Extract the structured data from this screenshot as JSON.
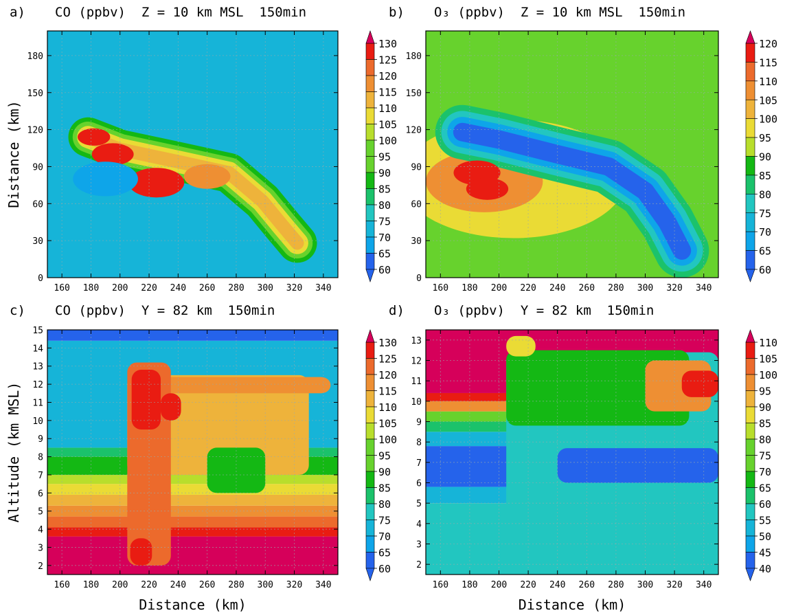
{
  "colors": {
    "levels": [
      "#2563eb",
      "#0ea5e9",
      "#16b4d8",
      "#22c6c0",
      "#1bc26b",
      "#14b814",
      "#67d22d",
      "#b8de2c",
      "#eadb35",
      "#eeb33b",
      "#ee8f33",
      "#ec6a2c",
      "#e91c12",
      "#d6005a"
    ],
    "arrow_low": "#2563eb",
    "arrow_high": "#d6005a"
  },
  "chart_data": [
    {
      "id": "a",
      "type": "heatmap",
      "panel_label": "a)",
      "title": "CO (ppbv)  Z = 10 km MSL  150min",
      "xlabel": "",
      "ylabel": "Distance (km)",
      "xlim": [
        150,
        350
      ],
      "ylim": [
        0,
        200
      ],
      "xticks": [
        "160",
        "180",
        "200",
        "220",
        "240",
        "260",
        "280",
        "300",
        "320",
        "340"
      ],
      "yticks": [
        "0",
        "30",
        "60",
        "90",
        "120",
        "150",
        "180"
      ],
      "colorbar": [
        "130",
        "125",
        "120",
        "115",
        "110",
        "105",
        "100",
        "95",
        "90",
        "85",
        "80",
        "75",
        "70",
        "65",
        "60"
      ],
      "background_level": 2,
      "features": [
        {
          "kind": "band",
          "points": [
            [
              178,
              114
            ],
            [
              200,
              104
            ],
            [
              240,
              94
            ],
            [
              275,
              85
            ],
            [
              298,
              62
            ],
            [
              312,
              42
            ],
            [
              322,
              28
            ]
          ],
          "halfwidth": 16,
          "levels": [
            5,
            6,
            8,
            9
          ]
        },
        {
          "kind": "blob",
          "x": 182,
          "y": 114,
          "r": 7,
          "level": 12
        },
        {
          "kind": "blob",
          "x": 195,
          "y": 100,
          "r": 9,
          "level": 12
        },
        {
          "kind": "blob",
          "x": 225,
          "y": 77,
          "r": 12,
          "level": 12
        },
        {
          "kind": "blob",
          "x": 260,
          "y": 82,
          "r": 10,
          "level": 10
        },
        {
          "kind": "blob",
          "x": 190,
          "y": 80,
          "r": 14,
          "level": 1,
          "under": true
        }
      ]
    },
    {
      "id": "b",
      "type": "heatmap",
      "panel_label": "b)",
      "title": "O₃ (ppbv)  Z = 10 km MSL  150min",
      "xlabel": "",
      "ylabel": "",
      "xlim": [
        150,
        350
      ],
      "ylim": [
        0,
        200
      ],
      "xticks": [
        "160",
        "180",
        "200",
        "220",
        "240",
        "260",
        "280",
        "300",
        "320",
        "340"
      ],
      "yticks": [
        "0",
        "30",
        "60",
        "90",
        "120",
        "150",
        "180"
      ],
      "colorbar": [
        "120",
        "115",
        "110",
        "105",
        "100",
        "95",
        "90",
        "85",
        "80",
        "75",
        "70",
        "65",
        "60"
      ],
      "background_level": 6,
      "features": [
        {
          "kind": "blob",
          "x": 210,
          "y": 80,
          "r": 48,
          "level": 8
        },
        {
          "kind": "blob",
          "x": 190,
          "y": 78,
          "r": 25,
          "level": 10
        },
        {
          "kind": "band",
          "points": [
            [
              175,
              118
            ],
            [
              200,
              112
            ],
            [
              240,
              100
            ],
            [
              275,
              90
            ],
            [
              300,
              70
            ],
            [
              315,
              45
            ],
            [
              325,
              22
            ]
          ],
          "halfwidth": 22,
          "levels": [
            4,
            3,
            1,
            0
          ]
        },
        {
          "kind": "blob",
          "x": 185,
          "y": 85,
          "r": 10,
          "level": 12
        },
        {
          "kind": "blob",
          "x": 192,
          "y": 72,
          "r": 9,
          "level": 12
        }
      ]
    },
    {
      "id": "c",
      "type": "heatmap",
      "panel_label": "c)",
      "title": "CO (ppbv)  Y = 82 km  150min",
      "xlabel": "Distance (km)",
      "ylabel": "Altitude (km MSL)",
      "xlim": [
        150,
        350
      ],
      "ylim": [
        1.5,
        15
      ],
      "xticks": [
        "160",
        "180",
        "200",
        "220",
        "240",
        "260",
        "280",
        "300",
        "320",
        "340"
      ],
      "yticks": [
        "2",
        "3",
        "4",
        "5",
        "6",
        "7",
        "8",
        "9",
        "10",
        "11",
        "12",
        "13",
        "14",
        "15"
      ],
      "colorbar": [
        "130",
        "125",
        "120",
        "115",
        "110",
        "105",
        "100",
        "95",
        "90",
        "85",
        "80",
        "75",
        "70",
        "65",
        "60"
      ],
      "layers": [
        {
          "y0": 1.5,
          "y1": 3.6,
          "level": 13
        },
        {
          "y0": 3.6,
          "y1": 4.1,
          "level": 12
        },
        {
          "y0": 4.1,
          "y1": 4.7,
          "level": 11
        },
        {
          "y0": 4.7,
          "y1": 5.3,
          "level": 10
        },
        {
          "y0": 5.3,
          "y1": 5.9,
          "level": 9
        },
        {
          "y0": 5.9,
          "y1": 6.5,
          "level": 8
        },
        {
          "y0": 6.5,
          "y1": 7.0,
          "level": 7
        },
        {
          "y0": 7.0,
          "y1": 8.0,
          "level": 5
        },
        {
          "y0": 8.0,
          "y1": 8.5,
          "level": 4
        },
        {
          "y0": 8.5,
          "y1": 14.4,
          "level": 2
        },
        {
          "y0": 14.4,
          "y1": 15,
          "level": 0
        }
      ],
      "features": [
        {
          "kind": "rect",
          "x0": 205,
          "x1": 330,
          "y0": 7.0,
          "y1": 12.5,
          "level": 9
        },
        {
          "kind": "rect",
          "x0": 205,
          "x1": 345,
          "y0": 11.5,
          "y1": 12.4,
          "level": 10
        },
        {
          "kind": "rect",
          "x0": 205,
          "x1": 235,
          "y0": 2.0,
          "y1": 13.2,
          "level": 11
        },
        {
          "kind": "rect",
          "x0": 208,
          "x1": 228,
          "y0": 9.5,
          "y1": 12.8,
          "level": 12
        },
        {
          "kind": "rect",
          "x0": 228,
          "x1": 242,
          "y0": 10.0,
          "y1": 11.5,
          "level": 12
        },
        {
          "kind": "rect",
          "x0": 260,
          "x1": 300,
          "y0": 6.0,
          "y1": 8.5,
          "level": 5
        },
        {
          "kind": "rect",
          "x0": 207,
          "x1": 222,
          "y0": 2.0,
          "y1": 3.5,
          "level": 12
        }
      ]
    },
    {
      "id": "d",
      "type": "heatmap",
      "panel_label": "d)",
      "title": "O₃ (ppbv)  Y = 82 km  150min",
      "xlabel": "Distance (km)",
      "ylabel": "",
      "xlim": [
        150,
        350
      ],
      "ylim": [
        1.5,
        13.5
      ],
      "xticks": [
        "160",
        "180",
        "200",
        "220",
        "240",
        "260",
        "280",
        "300",
        "320",
        "340"
      ],
      "yticks": [
        "2",
        "3",
        "4",
        "5",
        "6",
        "7",
        "8",
        "9",
        "10",
        "11",
        "12",
        "13"
      ],
      "colorbar": [
        "110",
        "105",
        "100",
        "95",
        "90",
        "85",
        "80",
        "75",
        "70",
        "65",
        "60",
        "55",
        "50",
        "45",
        "40"
      ],
      "layers": [
        {
          "y0": 1.5,
          "y1": 5.0,
          "level": 3
        },
        {
          "y0": 5.0,
          "y1": 5.8,
          "level": 2
        },
        {
          "y0": 5.8,
          "y1": 7.8,
          "level": 0
        },
        {
          "y0": 7.8,
          "y1": 8.5,
          "level": 2
        },
        {
          "y0": 8.5,
          "y1": 9.0,
          "level": 4
        },
        {
          "y0": 9.0,
          "y1": 9.5,
          "level": 6
        },
        {
          "y0": 9.5,
          "y1": 10.0,
          "level": 10
        },
        {
          "y0": 10.0,
          "y1": 10.4,
          "level": 12
        },
        {
          "y0": 10.4,
          "y1": 13.5,
          "level": 13
        }
      ],
      "features": [
        {
          "kind": "rect",
          "x0": 205,
          "x1": 350,
          "y0": 1.5,
          "y1": 12.4,
          "level": 3
        },
        {
          "kind": "rect",
          "x0": 240,
          "x1": 350,
          "y0": 6.0,
          "y1": 7.7,
          "level": 0
        },
        {
          "kind": "rect",
          "x0": 205,
          "x1": 330,
          "y0": 8.8,
          "y1": 12.5,
          "level": 5
        },
        {
          "kind": "rect",
          "x0": 300,
          "x1": 345,
          "y0": 9.5,
          "y1": 12.0,
          "level": 10
        },
        {
          "kind": "rect",
          "x0": 325,
          "x1": 350,
          "y0": 10.2,
          "y1": 11.5,
          "level": 12
        },
        {
          "kind": "rect",
          "x0": 205,
          "x1": 225,
          "y0": 12.2,
          "y1": 13.2,
          "level": 8
        }
      ]
    }
  ]
}
